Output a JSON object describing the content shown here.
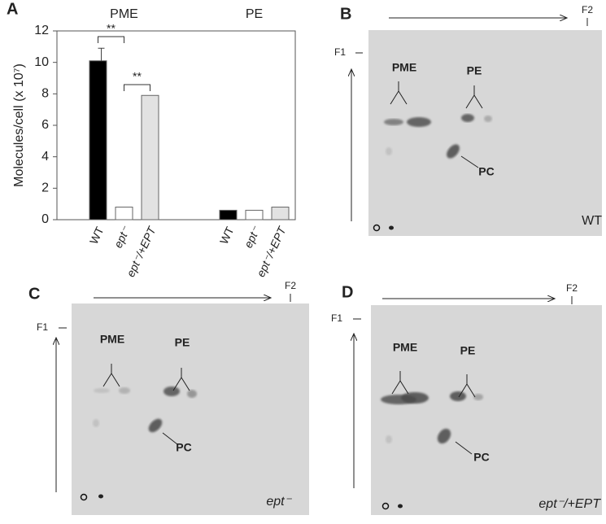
{
  "chart_data": {
    "type": "bar",
    "panel_label": "A",
    "y_label": "Molecules/cell (x 10⁷)",
    "categories": [
      "PME",
      "PE"
    ],
    "series": [
      {
        "name": "WT",
        "color": "#000000",
        "values": [
          10.1,
          0.6
        ],
        "errors": [
          0.8,
          null
        ]
      },
      {
        "name": "ept⁻",
        "color": "#ffffff",
        "values": [
          0.8,
          0.6
        ]
      },
      {
        "name": "ept⁻/+EPT",
        "color": "#e2e2e2",
        "values": [
          7.9,
          0.8
        ]
      }
    ],
    "ylim": [
      0,
      12
    ],
    "yticks": [
      0,
      2,
      4,
      6,
      8,
      10,
      12
    ],
    "annotations": [
      "**",
      "**"
    ]
  },
  "panels": [
    {
      "label": "B",
      "f1": "F1",
      "f2": "F2",
      "pme": "PME",
      "pe": "PE",
      "pc": "PC",
      "sample": "WT"
    },
    {
      "label": "C",
      "f1": "F1",
      "f2": "F2",
      "pme": "PME",
      "pe": "PE",
      "pc": "PC",
      "sample": "ept⁻"
    },
    {
      "label": "D",
      "f1": "F1",
      "f2": "F2",
      "pme": "PME",
      "pe": "PE",
      "pc": "PC",
      "sample": "ept⁻/+EPT"
    }
  ]
}
